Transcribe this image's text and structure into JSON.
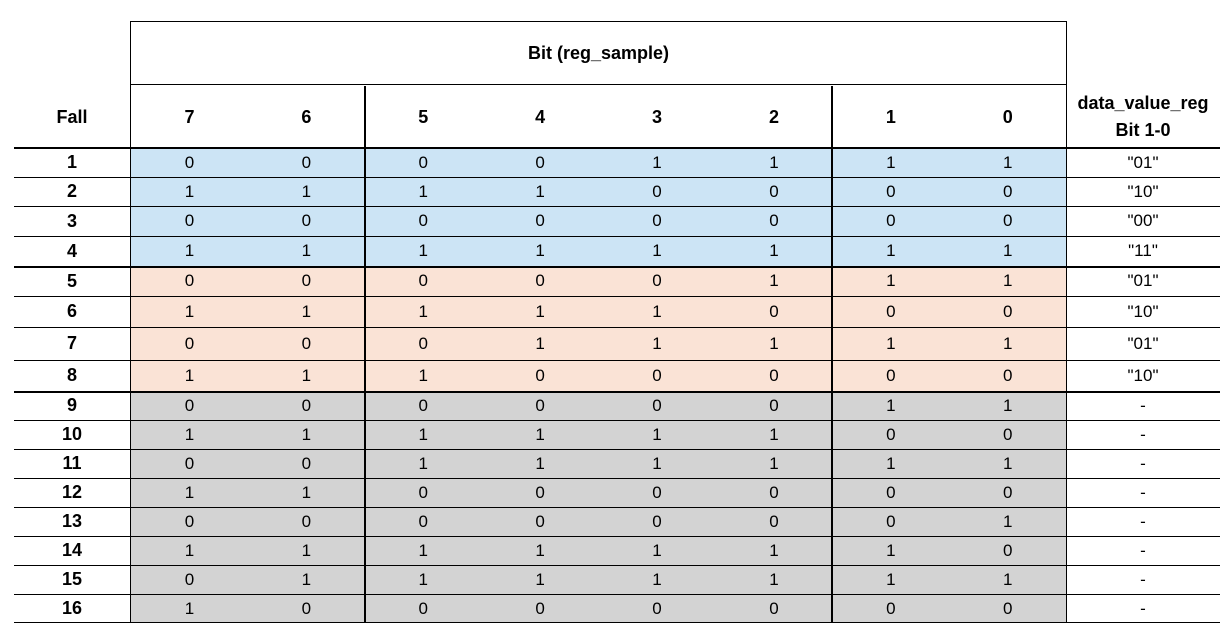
{
  "header": {
    "group_label": "Bit (reg_sample)",
    "fall_label": "Fall",
    "bits": [
      "7",
      "6",
      "5",
      "4",
      "3",
      "2",
      "1",
      "0"
    ],
    "result_label_line1": "data_value_reg",
    "result_label_line2": "Bit 1-0"
  },
  "colors": {
    "group_a": "#cce4f5",
    "group_b": "#fae3d6",
    "group_c": "#d3d3d3"
  },
  "rows": [
    {
      "fall": "1",
      "bits": [
        "0",
        "0",
        "0",
        "0",
        "1",
        "1",
        "1",
        "1"
      ],
      "result": "\"01\"",
      "group": "group_a"
    },
    {
      "fall": "2",
      "bits": [
        "1",
        "1",
        "1",
        "1",
        "0",
        "0",
        "0",
        "0"
      ],
      "result": "\"10\"",
      "group": "group_a"
    },
    {
      "fall": "3",
      "bits": [
        "0",
        "0",
        "0",
        "0",
        "0",
        "0",
        "0",
        "0"
      ],
      "result": "\"00\"",
      "group": "group_a"
    },
    {
      "fall": "4",
      "bits": [
        "1",
        "1",
        "1",
        "1",
        "1",
        "1",
        "1",
        "1"
      ],
      "result": "\"11\"",
      "group": "group_a"
    },
    {
      "fall": "5",
      "bits": [
        "0",
        "0",
        "0",
        "0",
        "0",
        "1",
        "1",
        "1"
      ],
      "result": "\"01\"",
      "group": "group_b"
    },
    {
      "fall": "6",
      "bits": [
        "1",
        "1",
        "1",
        "1",
        "1",
        "0",
        "0",
        "0"
      ],
      "result": "\"10\"",
      "group": "group_b"
    },
    {
      "fall": "7",
      "bits": [
        "0",
        "0",
        "0",
        "1",
        "1",
        "1",
        "1",
        "1"
      ],
      "result": "\"01\"",
      "group": "group_b"
    },
    {
      "fall": "8",
      "bits": [
        "1",
        "1",
        "1",
        "0",
        "0",
        "0",
        "0",
        "0"
      ],
      "result": "\"10\"",
      "group": "group_b"
    },
    {
      "fall": "9",
      "bits": [
        "0",
        "0",
        "0",
        "0",
        "0",
        "0",
        "1",
        "1"
      ],
      "result": "-",
      "group": "group_c"
    },
    {
      "fall": "10",
      "bits": [
        "1",
        "1",
        "1",
        "1",
        "1",
        "1",
        "0",
        "0"
      ],
      "result": "-",
      "group": "group_c"
    },
    {
      "fall": "11",
      "bits": [
        "0",
        "0",
        "1",
        "1",
        "1",
        "1",
        "1",
        "1"
      ],
      "result": "-",
      "group": "group_c"
    },
    {
      "fall": "12",
      "bits": [
        "1",
        "1",
        "0",
        "0",
        "0",
        "0",
        "0",
        "0"
      ],
      "result": "-",
      "group": "group_c"
    },
    {
      "fall": "13",
      "bits": [
        "0",
        "0",
        "0",
        "0",
        "0",
        "0",
        "0",
        "1"
      ],
      "result": "-",
      "group": "group_c"
    },
    {
      "fall": "14",
      "bits": [
        "1",
        "1",
        "1",
        "1",
        "1",
        "1",
        "1",
        "0"
      ],
      "result": "-",
      "group": "group_c"
    },
    {
      "fall": "15",
      "bits": [
        "0",
        "1",
        "1",
        "1",
        "1",
        "1",
        "1",
        "1"
      ],
      "result": "-",
      "group": "group_c"
    },
    {
      "fall": "16",
      "bits": [
        "1",
        "0",
        "0",
        "0",
        "0",
        "0",
        "0",
        "0"
      ],
      "result": "-",
      "group": "group_c"
    }
  ]
}
